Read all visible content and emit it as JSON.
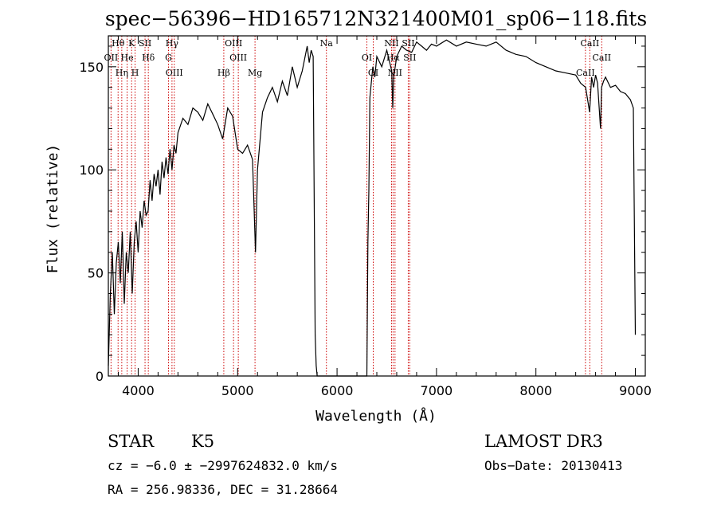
{
  "chart_data": {
    "type": "line",
    "title": "spec−56396−HD165712N321400M01_sp06−118.fits",
    "xlabel": "Wavelength (Å)",
    "ylabel": "Flux (relative)",
    "xlim": [
      3700,
      9100
    ],
    "ylim": [
      0,
      165
    ],
    "x_ticks": [
      4000,
      5000,
      6000,
      7000,
      8000,
      9000
    ],
    "y_ticks": [
      0,
      50,
      100,
      150
    ],
    "grid": false,
    "legend": "none",
    "series": [
      {
        "x": [
          3700,
          3720,
          3740,
          3760,
          3780,
          3800,
          3820,
          3840,
          3860,
          3880,
          3900,
          3920,
          3940,
          3960,
          3980,
          4000,
          4020,
          4040,
          4060,
          4080,
          4100,
          4120,
          4140,
          4160,
          4180,
          4200,
          4220,
          4240,
          4260,
          4280,
          4300,
          4320,
          4340,
          4360,
          4380,
          4400,
          4450,
          4500,
          4550,
          4600,
          4650,
          4700,
          4750,
          4800,
          4850,
          4900,
          4950,
          5000,
          5050,
          5100,
          5150,
          5180,
          5200,
          5250,
          5300,
          5350,
          5400,
          5450,
          5500,
          5550,
          5600,
          5650,
          5700,
          5720,
          5740,
          5760,
          5780,
          5790,
          5800,
          5820,
          5840,
          5860,
          5880,
          5900,
          5950,
          6000,
          6050,
          6100,
          6150,
          6200,
          6250,
          6300,
          6310,
          6320,
          6330,
          6340,
          6360,
          6380,
          6400,
          6450,
          6500,
          6550,
          6560,
          6570,
          6600,
          6650,
          6700,
          6750,
          6800,
          6850,
          6900,
          6950,
          7000,
          7100,
          7200,
          7300,
          7400,
          7500,
          7600,
          7700,
          7800,
          7900,
          8000,
          8100,
          8200,
          8300,
          8400,
          8450,
          8500,
          8540,
          8560,
          8580,
          8600,
          8620,
          8650,
          8660,
          8680,
          8700,
          8750,
          8800,
          8850,
          8900,
          8950,
          8980,
          9000
        ],
        "y": [
          5,
          40,
          60,
          30,
          55,
          65,
          45,
          70,
          35,
          60,
          50,
          70,
          40,
          65,
          75,
          60,
          80,
          72,
          85,
          78,
          80,
          95,
          85,
          98,
          92,
          100,
          88,
          104,
          96,
          106,
          98,
          110,
          100,
          112,
          108,
          118,
          125,
          122,
          130,
          128,
          124,
          132,
          127,
          122,
          115,
          130,
          126,
          110,
          108,
          112,
          105,
          60,
          100,
          128,
          135,
          140,
          133,
          143,
          136,
          150,
          140,
          148,
          160,
          152,
          158,
          155,
          20,
          5,
          0,
          0,
          0,
          0,
          0,
          0,
          0,
          0,
          0,
          0,
          0,
          0,
          0,
          0,
          65,
          90,
          135,
          140,
          150,
          145,
          155,
          150,
          158,
          148,
          130,
          145,
          155,
          160,
          158,
          157,
          162,
          160,
          158,
          161,
          160,
          163,
          160,
          162,
          161,
          160,
          162,
          158,
          156,
          155,
          152,
          150,
          148,
          147,
          146,
          142,
          140,
          128,
          145,
          140,
          146,
          142,
          120,
          140,
          143,
          145,
          140,
          141,
          138,
          137,
          134,
          130,
          20
        ]
      }
    ],
    "spectral_lines": [
      {
        "name": "Hθ",
        "wavelength": 3798
      },
      {
        "name": "OII",
        "wavelength": 3727
      },
      {
        "name": "Hη",
        "wavelength": 3835
      },
      {
        "name": "K",
        "wavelength": 3934
      },
      {
        "name": "He",
        "wavelength": 3889
      },
      {
        "name": "H",
        "wavelength": 3969
      },
      {
        "name": "SII",
        "wavelength": 4069
      },
      {
        "name": "Hδ",
        "wavelength": 4102
      },
      {
        "name": "OIII",
        "wavelength": 4363
      },
      {
        "name": "Hγ",
        "wavelength": 4340
      },
      {
        "name": "G",
        "wavelength": 4305
      },
      {
        "name": "Hβ",
        "wavelength": 4861
      },
      {
        "name": "OIII",
        "wavelength": 4959
      },
      {
        "name": "OIII",
        "wavelength": 5007
      },
      {
        "name": "Mg",
        "wavelength": 5175
      },
      {
        "name": "Na",
        "wavelength": 5893
      },
      {
        "name": "OI",
        "wavelength": 6300
      },
      {
        "name": "OI",
        "wavelength": 6364
      },
      {
        "name": "NII",
        "wavelength": 6548
      },
      {
        "name": "Hα",
        "wavelength": 6563
      },
      {
        "name": "NII",
        "wavelength": 6583
      },
      {
        "name": "SII",
        "wavelength": 6716
      },
      {
        "name": "SII",
        "wavelength": 6731
      },
      {
        "name": "CaII",
        "wavelength": 8498
      },
      {
        "name": "CaII",
        "wavelength": 8542
      },
      {
        "name": "CaII",
        "wavelength": 8662
      }
    ],
    "line_color": "#000000",
    "marker_color": "#cc0000"
  },
  "info": {
    "object_class": "STAR",
    "subclass": "K5",
    "survey": "LAMOST DR3",
    "redshift_text": "cz = −6.0 ± −2997624832.0 km/s",
    "obs_date_text": "Obs−Date: 20130413",
    "coords_text": "RA = 256.98336, DEC =  31.28664"
  }
}
